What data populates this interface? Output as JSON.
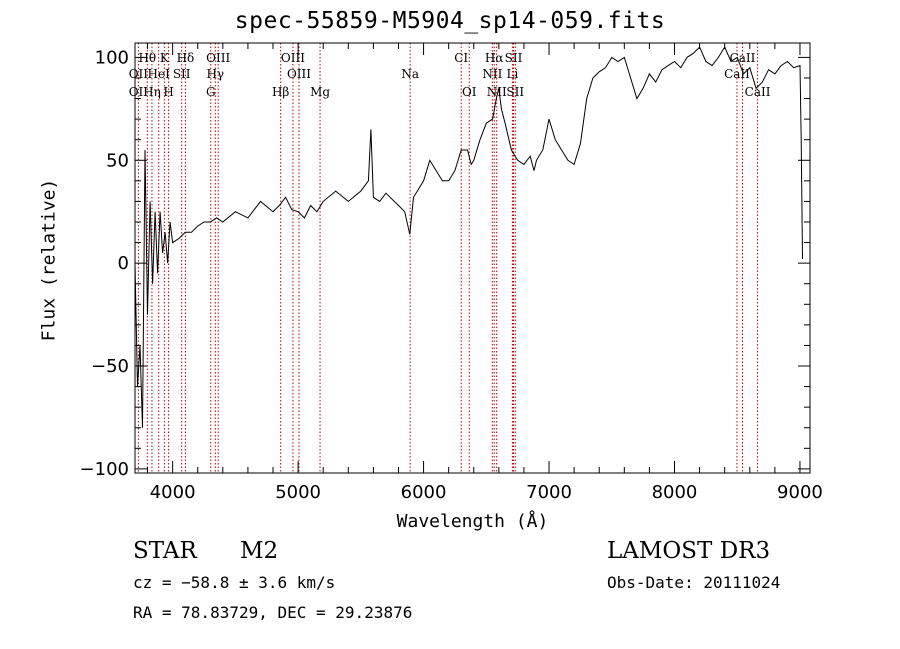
{
  "chart_data": {
    "type": "line",
    "title": "spec-55859-M5904_sp14-059.fits",
    "xlabel": "Wavelength (Å)",
    "ylabel": "Flux (relative)",
    "xlim": [
      3700,
      9080
    ],
    "ylim": [
      -102,
      107
    ],
    "x_ticks": [
      4000,
      5000,
      6000,
      7000,
      8000,
      9000
    ],
    "y_ticks": [
      -100,
      -50,
      0,
      50,
      100
    ],
    "series": [
      {
        "name": "flux",
        "x": [
          3700,
          3720,
          3740,
          3760,
          3780,
          3800,
          3820,
          3840,
          3860,
          3880,
          3900,
          3920,
          3940,
          3960,
          3980,
          4000,
          4050,
          4100,
          4150,
          4200,
          4250,
          4300,
          4350,
          4400,
          4500,
          4600,
          4700,
          4800,
          4850,
          4900,
          4950,
          5000,
          5050,
          5100,
          5150,
          5200,
          5300,
          5400,
          5500,
          5560,
          5580,
          5600,
          5650,
          5700,
          5800,
          5850,
          5890,
          5920,
          5950,
          6000,
          6050,
          6100,
          6150,
          6200,
          6250,
          6300,
          6350,
          6380,
          6400,
          6450,
          6500,
          6550,
          6580,
          6600,
          6620,
          6650,
          6700,
          6750,
          6800,
          6850,
          6880,
          6900,
          6950,
          7000,
          7050,
          7100,
          7150,
          7200,
          7250,
          7300,
          7350,
          7400,
          7450,
          7500,
          7550,
          7600,
          7650,
          7700,
          7750,
          7800,
          7850,
          7900,
          7950,
          8000,
          8050,
          8100,
          8150,
          8200,
          8250,
          8300,
          8350,
          8400,
          8450,
          8500,
          8550,
          8600,
          8650,
          8700,
          8750,
          8800,
          8850,
          8900,
          8950,
          9000,
          9010,
          9020
        ],
        "values": [
          0,
          -60,
          -40,
          -80,
          55,
          -25,
          30,
          -10,
          25,
          -5,
          25,
          5,
          15,
          0,
          20,
          10,
          12,
          15,
          15,
          18,
          20,
          20,
          22,
          20,
          25,
          22,
          30,
          25,
          28,
          32,
          26,
          25,
          22,
          28,
          25,
          30,
          35,
          30,
          35,
          40,
          65,
          32,
          30,
          34,
          28,
          25,
          14,
          32,
          35,
          40,
          50,
          45,
          40,
          40,
          45,
          55,
          55,
          48,
          50,
          60,
          68,
          70,
          80,
          85,
          75,
          68,
          55,
          50,
          48,
          52,
          45,
          50,
          55,
          70,
          60,
          55,
          50,
          48,
          58,
          80,
          90,
          93,
          95,
          100,
          98,
          100,
          90,
          80,
          85,
          92,
          88,
          94,
          96,
          98,
          95,
          100,
          102,
          105,
          98,
          96,
          100,
          105,
          98,
          100,
          92,
          95,
          85,
          88,
          94,
          92,
          96,
          98,
          95,
          96,
          60,
          2
        ]
      }
    ],
    "lines": {
      "row1": [
        {
          "label": "Hθ",
          "wave": 3798
        },
        {
          "label": "K",
          "wave": 3934
        },
        {
          "label": "Hδ",
          "wave": 4102
        },
        {
          "label": "OIII",
          "wave": 4363
        },
        {
          "label": "OIII",
          "wave": 4959
        },
        {
          "label": "CI",
          "wave": 6300
        },
        {
          "label": "Hα",
          "wave": 6563
        },
        {
          "label": "SII",
          "wave": 6717
        },
        {
          "label": "CaII",
          "wave": 8542
        }
      ],
      "row2": [
        {
          "label": "OII",
          "wave": 3727
        },
        {
          "label": "HeI",
          "wave": 3889
        },
        {
          "label": "SII",
          "wave": 4072
        },
        {
          "label": "Hγ",
          "wave": 4340
        },
        {
          "label": "OIII",
          "wave": 5007
        },
        {
          "label": "Na",
          "wave": 5893
        },
        {
          "label": "NII",
          "wave": 6548
        },
        {
          "label": "Li",
          "wave": 6708
        },
        {
          "label": "CaII",
          "wave": 8498
        }
      ],
      "row3": [
        {
          "label": "OII",
          "wave": 3727
        },
        {
          "label": "Hη",
          "wave": 3835
        },
        {
          "label": "H",
          "wave": 3968
        },
        {
          "label": "G",
          "wave": 4304
        },
        {
          "label": "Hβ",
          "wave": 4861
        },
        {
          "label": "Mg",
          "wave": 5175
        },
        {
          "label": "OI",
          "wave": 6364
        },
        {
          "label": "NII",
          "wave": 6583
        },
        {
          "label": "SII",
          "wave": 6731
        },
        {
          "label": "CaII",
          "wave": 8662
        }
      ]
    }
  },
  "info": {
    "star_class": "STAR",
    "subclass": "M2",
    "survey": "LAMOST DR3",
    "cz": "cz = −58.8 ± 3.6 km/s",
    "coords": "RA =  78.83729, DEC =  29.23876",
    "obs_date": "Obs-Date: 20111024"
  },
  "colors": {
    "line": "#000000",
    "marker_line": "#c00000"
  }
}
